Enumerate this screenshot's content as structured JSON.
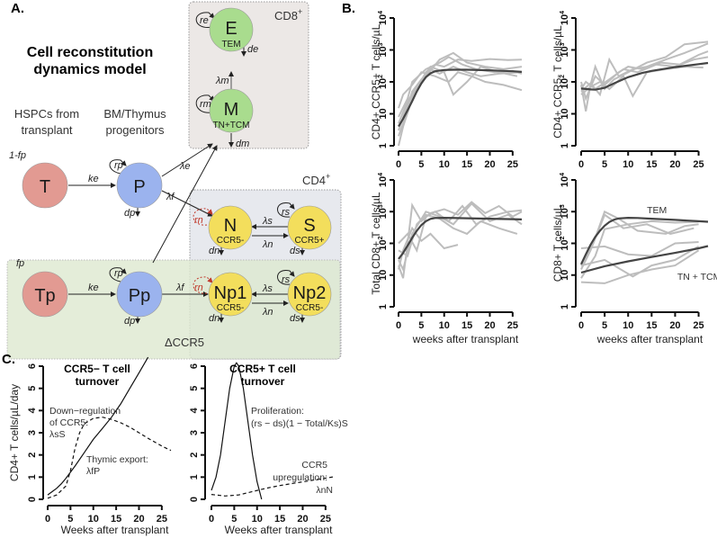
{
  "panel_a": {
    "label": "A.",
    "title_line1": "Cell reconstitution",
    "title_line2": "dynamics model",
    "hspc_line1": "HSPCs from",
    "hspc_line2": "transplant",
    "prog_line1": "BM/Thymus",
    "prog_line2": "progenitors",
    "cd8_box": "CD8",
    "cd4_box": "CD4",
    "dccr5_box": "ΔCCR5",
    "plus": "+",
    "nodes": {
      "T": {
        "label": "T",
        "color": "#e29a92"
      },
      "P": {
        "label": "P",
        "color": "#9bb3ee"
      },
      "E": {
        "label": "E",
        "sub": "TEM",
        "color": "#a9dc8e"
      },
      "M": {
        "label": "M",
        "sub": "TN+TCM",
        "color": "#a9dc8e"
      },
      "N": {
        "label": "N",
        "sub": "CCR5-",
        "color": "#f3de5c"
      },
      "S": {
        "label": "S",
        "sub": "CCR5+",
        "color": "#f3de5c"
      },
      "Tp": {
        "label": "Tp",
        "color": "#e29a92"
      },
      "Pp": {
        "label": "Pp",
        "color": "#9bb3ee"
      },
      "Np1": {
        "label": "Np1",
        "sub": "CCR5-",
        "color": "#f3de5c"
      },
      "Np2": {
        "label": "Np2",
        "sub": "CCR5-",
        "color": "#f3de5c"
      }
    },
    "rates": {
      "one_minus_fp": "1-fp",
      "fp": "fp",
      "ke": "ke",
      "rp": "rp",
      "dp": "dp",
      "lambda_e": "λe",
      "lambda_f": "λf",
      "lambda_m": "λm",
      "re": "re",
      "de": "de",
      "rm": "rm",
      "dm": "dm",
      "rn": "rn",
      "rs": "rs",
      "dn": "dn",
      "ds": "ds",
      "lambda_s": "λs",
      "lambda_n": "λn"
    },
    "colors": {
      "cd8_box": "#ece8e6",
      "cd4_box": "#e7e9ee",
      "dccr5_box": "#e3efd9",
      "rn_arrow": "#c0392b"
    }
  },
  "panel_b": {
    "label": "B."
  },
  "panel_c": {
    "label": "C."
  },
  "chart_data": [
    {
      "id": "b1",
      "type": "line",
      "ylabel": "CD4+ CCR5+ T cells/µL",
      "xlabel": "",
      "yscale": "log",
      "ylim": [
        1,
        10000
      ],
      "xlim": [
        0,
        27
      ],
      "xticks": [
        "0",
        "5",
        "10",
        "15",
        "20",
        "25"
      ],
      "yticks": [
        "1",
        "10",
        "10^2",
        "10^3",
        "10^4"
      ],
      "model_fit": {
        "x": [
          0,
          1,
          2,
          3,
          4,
          5,
          6,
          7,
          8,
          10,
          12,
          15,
          20,
          25,
          27
        ],
        "y": [
          4,
          7,
          13,
          25,
          50,
          90,
          140,
          185,
          215,
          235,
          240,
          240,
          230,
          215,
          205
        ]
      },
      "individual_traces": [
        {
          "x": [
            0,
            2,
            4,
            6,
            8,
            10,
            13,
            16,
            20,
            24,
            27
          ],
          "y": [
            3,
            20,
            60,
            200,
            350,
            300,
            500,
            450,
            520,
            480,
            500
          ]
        },
        {
          "x": [
            0,
            1,
            3,
            5,
            7,
            9,
            12,
            15,
            18,
            22,
            27
          ],
          "y": [
            2,
            5,
            50,
            120,
            250,
            180,
            300,
            200,
            150,
            180,
            200
          ]
        },
        {
          "x": [
            0,
            2,
            3,
            6,
            9,
            11,
            14,
            17,
            21,
            25,
            27
          ],
          "y": [
            8,
            30,
            100,
            250,
            400,
            600,
            350,
            250,
            200,
            220,
            180
          ]
        },
        {
          "x": [
            0,
            1,
            3,
            5,
            8,
            11,
            13,
            16,
            19,
            23,
            27
          ],
          "y": [
            15,
            40,
            80,
            200,
            150,
            100,
            200,
            150,
            100,
            80,
            55
          ]
        },
        {
          "x": [
            0,
            2,
            4,
            7,
            10,
            12,
            15,
            18,
            22,
            26
          ],
          "y": [
            5,
            25,
            70,
            300,
            200,
            40,
            100,
            300,
            200,
            150
          ]
        },
        {
          "x": [
            0,
            1,
            3,
            6,
            9,
            12,
            15,
            19,
            23,
            27
          ],
          "y": [
            1,
            4,
            30,
            150,
            500,
            800,
            400,
            300,
            250,
            300
          ]
        }
      ]
    },
    {
      "id": "b2",
      "type": "line",
      "ylabel": "CD4+ CCR5- T cells/µL",
      "xlabel": "",
      "yscale": "log",
      "ylim": [
        1,
        10000
      ],
      "xlim": [
        0,
        27
      ],
      "xticks": [
        "0",
        "5",
        "10",
        "15",
        "20",
        "25"
      ],
      "yticks": [
        "1",
        "10",
        "10^2",
        "10^3",
        "10^4"
      ],
      "model_fit": {
        "x": [
          0,
          2,
          3,
          5,
          7,
          10,
          13,
          15,
          20,
          25,
          27
        ],
        "y": [
          62,
          58,
          57,
          65,
          90,
          140,
          190,
          220,
          290,
          360,
          390
        ]
      },
      "individual_traces": [
        {
          "x": [
            0,
            1,
            2,
            3,
            5,
            7,
            10,
            14,
            18,
            22,
            27
          ],
          "y": [
            80,
            12,
            80,
            300,
            60,
            120,
            200,
            400,
            600,
            1500,
            1800
          ]
        },
        {
          "x": [
            0,
            2,
            4,
            6,
            8,
            11,
            14,
            18,
            22,
            25,
            27
          ],
          "y": [
            50,
            90,
            40,
            500,
            150,
            250,
            300,
            500,
            800,
            1200,
            1600
          ]
        },
        {
          "x": [
            0,
            1,
            3,
            5,
            8,
            10,
            13,
            17,
            21,
            25,
            27
          ],
          "y": [
            100,
            30,
            150,
            80,
            200,
            300,
            250,
            400,
            350,
            700,
            900
          ]
        },
        {
          "x": [
            0,
            2,
            4,
            6,
            9,
            11,
            14,
            18,
            22,
            26
          ],
          "y": [
            40,
            70,
            100,
            60,
            150,
            36,
            200,
            250,
            300,
            280
          ]
        },
        {
          "x": [
            0,
            1,
            3,
            6,
            9,
            12,
            16,
            20,
            24,
            27
          ],
          "y": [
            60,
            100,
            60,
            120,
            250,
            200,
            350,
            300,
            500,
            600
          ]
        }
      ]
    },
    {
      "id": "b3",
      "type": "line",
      "ylabel": "Total CD8+ T cells/µL",
      "xlabel": "weeks after transplant",
      "yscale": "log",
      "ylim": [
        1,
        10000
      ],
      "xlim": [
        0,
        27
      ],
      "xticks": [
        "0",
        "5",
        "10",
        "15",
        "20",
        "25"
      ],
      "yticks": [
        "1",
        "10",
        "10^2",
        "10^3",
        "10^4"
      ],
      "model_fit": {
        "x": [
          0,
          1,
          2,
          3,
          4,
          5,
          6,
          7,
          8,
          10,
          15,
          20,
          25,
          27
        ],
        "y": [
          32,
          50,
          85,
          150,
          250,
          380,
          500,
          590,
          630,
          640,
          620,
          600,
          580,
          570
        ]
      },
      "individual_traces": [
        {
          "x": [
            0,
            1,
            2,
            3,
            5,
            7,
            10,
            13,
            16,
            19,
            22,
            25,
            27
          ],
          "y": [
            20,
            8,
            100,
            1600,
            500,
            900,
            1200,
            800,
            2000,
            900,
            1500,
            700,
            1000
          ]
        },
        {
          "x": [
            0,
            2,
            4,
            6,
            8,
            11,
            14,
            17,
            20,
            24,
            27
          ],
          "y": [
            100,
            200,
            60,
            700,
            1000,
            500,
            1500,
            400,
            700,
            1000,
            1100
          ]
        },
        {
          "x": [
            0,
            1,
            3,
            5,
            7,
            10,
            13
          ],
          "y": [
            15,
            60,
            300,
            120,
            200,
            70,
            90
          ]
        },
        {
          "x": [
            0,
            2,
            4,
            6,
            9,
            12,
            15,
            18,
            22,
            26
          ],
          "y": [
            60,
            40,
            400,
            800,
            600,
            300,
            200,
            500,
            300,
            200
          ]
        },
        {
          "x": [
            0,
            1,
            3,
            6,
            9,
            12,
            16,
            20,
            24,
            27
          ],
          "y": [
            30,
            15,
            200,
            1000,
            700,
            400,
            1800,
            500,
            800,
            400
          ]
        }
      ]
    },
    {
      "id": "b4",
      "type": "line",
      "ylabel": "CD8+ T cells/µL",
      "xlabel": "weeks after transplant",
      "yscale": "log",
      "ylim": [
        1,
        10000
      ],
      "xlim": [
        0,
        27
      ],
      "xticks": [
        "0",
        "5",
        "10",
        "15",
        "20",
        "25"
      ],
      "yticks": [
        "1",
        "10",
        "10^2",
        "10^3",
        "10^4"
      ],
      "annotations": [
        {
          "text": "TEM",
          "x": 14,
          "y": 900
        },
        {
          "text": "TN + TCM",
          "x": 22,
          "y": 8
        }
      ],
      "series": [
        {
          "name": "TEM",
          "x": [
            0,
            1,
            2,
            3,
            4,
            5,
            6,
            7,
            8,
            10,
            12,
            15,
            20,
            25,
            27
          ],
          "y": [
            22,
            45,
            90,
            160,
            250,
            360,
            470,
            560,
            610,
            640,
            630,
            600,
            550,
            500,
            480
          ]
        },
        {
          "name": "TN + TCM",
          "x": [
            0,
            5,
            10,
            15,
            20,
            25,
            27
          ],
          "y": [
            12,
            19,
            27,
            37,
            50,
            70,
            82
          ]
        }
      ],
      "individual_traces": [
        {
          "x": [
            0,
            3,
            5,
            8,
            12,
            18,
            22,
            25
          ],
          "y": [
            20,
            150,
            1000,
            600,
            250,
            200,
            350,
            400
          ]
        },
        {
          "x": [
            0,
            2,
            5,
            9,
            14,
            19,
            24
          ],
          "y": [
            15,
            60,
            800,
            300,
            400,
            200,
            300
          ]
        },
        {
          "x": [
            0,
            3,
            5,
            10,
            15,
            20,
            25
          ],
          "y": [
            8,
            40,
            280,
            400,
            500,
            450,
            480
          ]
        },
        {
          "x": [
            0,
            5,
            10,
            15,
            20,
            25
          ],
          "y": [
            70,
            80,
            45,
            40,
            100,
            110
          ]
        },
        {
          "x": [
            0,
            5,
            11,
            15,
            20,
            25
          ],
          "y": [
            20,
            30,
            9,
            20,
            30,
            80
          ]
        },
        {
          "x": [
            0,
            5,
            10,
            15,
            20,
            25
          ],
          "y": [
            6,
            5.5,
            10,
            15,
            20,
            60
          ]
        }
      ]
    },
    {
      "id": "c1",
      "type": "line",
      "title_line1": "CCR5− T cell",
      "title_line2": "turnover",
      "ylabel": "CD4+ T cells/µL/day",
      "xlabel": "Weeks after transplant",
      "ylim": [
        0,
        6
      ],
      "xlim": [
        0,
        27
      ],
      "xticks": [
        "0",
        "5",
        "10",
        "15",
        "20",
        "25"
      ],
      "yticks": [
        "0",
        "1",
        "2",
        "3",
        "4",
        "5",
        "6"
      ],
      "series": [
        {
          "name": "Thymic export: λfP",
          "style": "solid",
          "x": [
            0,
            1,
            2,
            3,
            4,
            6,
            8,
            10,
            12,
            14,
            16,
            18,
            20,
            22
          ],
          "y": [
            0.2,
            0.35,
            0.5,
            0.7,
            0.95,
            1.5,
            2.1,
            2.7,
            3.2,
            3.7,
            4.3,
            5.0,
            5.7,
            6.4
          ]
        },
        {
          "name": "Down-regulation of CCR5: λsS",
          "style": "dashed",
          "x": [
            0,
            2,
            4,
            5,
            6,
            7,
            8,
            10,
            12,
            14,
            16,
            18,
            20,
            22,
            25,
            27
          ],
          "y": [
            0.05,
            0.2,
            0.6,
            1.3,
            2.3,
            3.0,
            3.4,
            3.65,
            3.7,
            3.6,
            3.45,
            3.25,
            3.0,
            2.75,
            2.4,
            2.2
          ]
        }
      ],
      "annotations": [
        {
          "line1": "Down−regulation",
          "line2": "of CCR5:",
          "line3": "λsS"
        },
        {
          "line1": "Thymic export:",
          "line2": "λfP"
        }
      ]
    },
    {
      "id": "c2",
      "type": "line",
      "title_line1": "CCR5+ T cell",
      "title_line2": "turnover",
      "ylabel": "",
      "xlabel": "Weeks after transplant",
      "ylim": [
        0,
        6
      ],
      "xlim": [
        0,
        27
      ],
      "xticks": [
        "0",
        "5",
        "10",
        "15",
        "20",
        "25"
      ],
      "yticks": [
        "0",
        "1",
        "2",
        "3",
        "4",
        "5",
        "6"
      ],
      "series": [
        {
          "name": "Proliferation: (rs − ds)(1 − Total/Ks)S",
          "style": "solid",
          "x": [
            0,
            1,
            2,
            3,
            4,
            5,
            5.5,
            6,
            7,
            8,
            9,
            10,
            11
          ],
          "y": [
            0.4,
            1.0,
            2.0,
            3.5,
            5.0,
            6.0,
            6.15,
            6.0,
            5.0,
            3.5,
            2.0,
            0.8,
            0
          ]
        },
        {
          "name": "CCR5 upregulation: λnN",
          "style": "dashed",
          "x": [
            0,
            3,
            6,
            9,
            12,
            15,
            18,
            21,
            24,
            27
          ],
          "y": [
            0.22,
            0.15,
            0.2,
            0.35,
            0.5,
            0.62,
            0.72,
            0.82,
            0.92,
            1.02
          ]
        }
      ],
      "annotations": [
        {
          "line1": "Proliferation:",
          "line2": "(rs − ds)(1 − Total/Ks)S"
        },
        {
          "line1": "CCR5",
          "line2": "upregulation:",
          "line3": "λnN"
        }
      ]
    }
  ]
}
